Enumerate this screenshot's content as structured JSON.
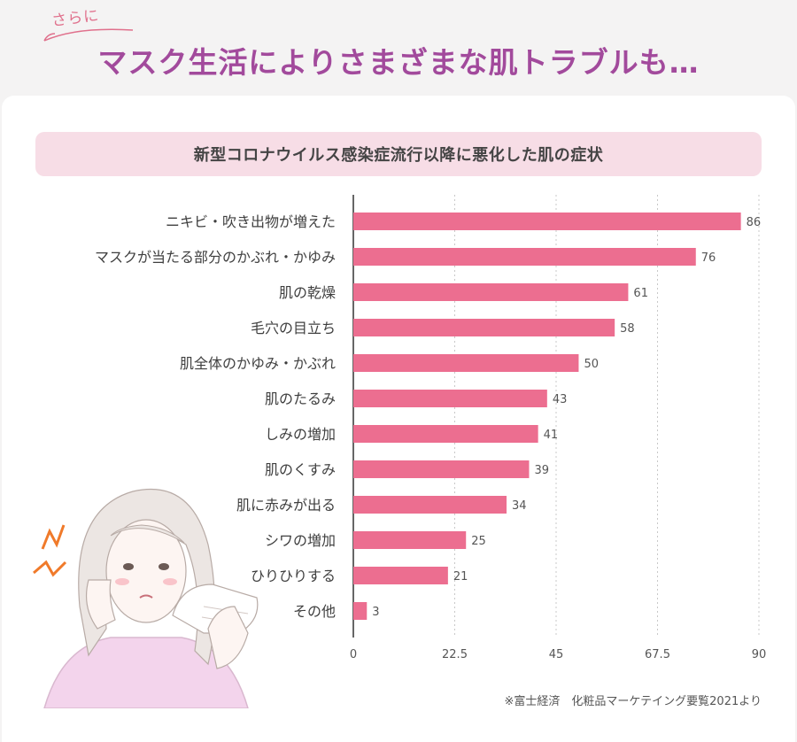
{
  "header": {
    "eyebrow": "さらに",
    "title": "マスク生活によりさまざまな肌トラブルも…"
  },
  "banner": {
    "text": "新型コロナウイルス感染症流行以降に悪化した肌の症状"
  },
  "chart_data": {
    "type": "bar",
    "orientation": "horizontal",
    "title": "新型コロナウイルス感染症流行以降に悪化した肌の症状",
    "categories": [
      "ニキビ・吹き出物が増えた",
      "マスクが当たる部分のかぶれ・かゆみ",
      "肌の乾燥",
      "毛穴の目立ち",
      "肌全体のかゆみ・かぶれ",
      "肌のたるみ",
      "しみの増加",
      "肌のくすみ",
      "肌に赤みが出る",
      "シワの増加",
      "ひりひりする",
      "その他"
    ],
    "values": [
      86,
      76,
      61,
      58,
      50,
      43,
      41,
      39,
      34,
      25,
      21,
      3
    ],
    "xlim": [
      0,
      90
    ],
    "ticks": [
      "0",
      "22.5",
      "45",
      "67.5",
      "90"
    ],
    "grid": true,
    "bar_color": "#ec6e90"
  },
  "source": "※富士経済　化粧品マーケテイング要覧2021より",
  "colors": {
    "title": "#a24a9c",
    "accent": "#e0708c",
    "banner_bg": "#f7dde6"
  }
}
